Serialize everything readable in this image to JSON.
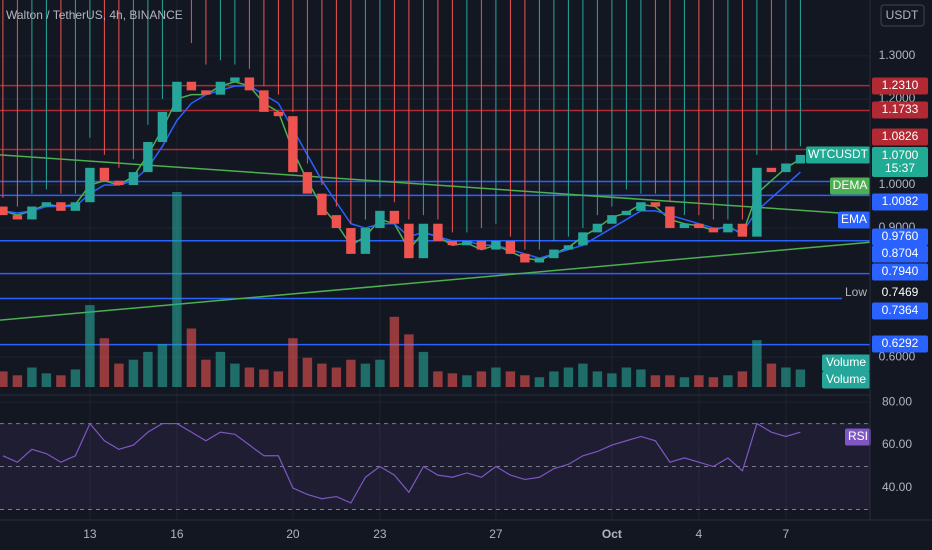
{
  "chart_data": {
    "type": "candlestick",
    "title": "Walton / TetherUS, 4h, BINANCE",
    "currency": "USDT",
    "x": [
      10,
      10.5,
      11,
      11.5,
      12,
      12.5,
      13,
      13.5,
      14,
      14.5,
      15,
      15.5,
      16,
      16.5,
      17,
      17.5,
      18,
      18.5,
      19,
      19.5,
      20,
      20.5,
      21,
      21.5,
      22,
      22.5,
      23,
      23.5,
      24,
      24.5,
      25,
      25.5,
      26,
      26.5,
      27,
      27.5,
      28,
      28.5,
      29,
      29.5,
      30,
      30.5,
      31,
      31.5,
      32,
      32.5,
      33,
      33.5,
      34,
      34.5,
      35,
      35.5,
      36,
      36.5,
      37,
      37.5
    ],
    "open": [
      0.95,
      0.93,
      0.92,
      0.95,
      0.96,
      0.94,
      0.96,
      1.04,
      1.01,
      1.0,
      1.03,
      1.1,
      1.17,
      1.24,
      1.22,
      1.21,
      1.24,
      1.25,
      1.22,
      1.17,
      1.16,
      1.03,
      0.98,
      0.93,
      0.9,
      0.84,
      0.9,
      0.94,
      0.91,
      0.83,
      0.91,
      0.87,
      0.86,
      0.87,
      0.85,
      0.87,
      0.84,
      0.82,
      0.83,
      0.85,
      0.86,
      0.89,
      0.91,
      0.93,
      0.94,
      0.96,
      0.95,
      0.9,
      0.91,
      0.9,
      0.89,
      0.91,
      0.88,
      1.04,
      1.03,
      1.05
    ],
    "high": [
      0.97,
      0.95,
      0.98,
      0.99,
      0.98,
      0.98,
      1.11,
      1.07,
      1.04,
      1.06,
      1.14,
      1.2,
      1.43,
      1.33,
      1.28,
      1.29,
      1.28,
      1.27,
      1.23,
      1.21,
      1.17,
      1.05,
      1.0,
      0.95,
      0.91,
      0.92,
      0.97,
      0.96,
      0.92,
      0.93,
      0.92,
      0.89,
      0.89,
      0.9,
      0.91,
      0.88,
      0.85,
      0.85,
      0.87,
      0.88,
      0.9,
      0.93,
      0.95,
      0.99,
      0.98,
      0.98,
      0.96,
      0.93,
      0.93,
      0.92,
      0.92,
      0.92,
      1.07,
      1.08,
      1.08,
      1.09
    ],
    "low": {
      "name": "Low",
      "value": 0.7469,
      "value_label": "0.7469"
    },
    "close": [
      0.93,
      0.92,
      0.95,
      0.96,
      0.94,
      0.96,
      1.04,
      1.01,
      1.0,
      1.03,
      1.1,
      1.17,
      1.24,
      1.22,
      1.21,
      1.24,
      1.25,
      1.22,
      1.17,
      1.16,
      1.03,
      0.98,
      0.93,
      0.9,
      0.84,
      0.9,
      0.94,
      0.91,
      0.83,
      0.91,
      0.87,
      0.86,
      0.87,
      0.85,
      0.87,
      0.84,
      0.82,
      0.83,
      0.85,
      0.86,
      0.89,
      0.91,
      0.93,
      0.94,
      0.96,
      0.95,
      0.9,
      0.91,
      0.9,
      0.89,
      0.91,
      0.88,
      1.04,
      1.03,
      1.05,
      1.07
    ],
    "volume_name": "Volume",
    "volume": [
      8,
      6,
      10,
      7,
      6,
      9,
      42,
      25,
      12,
      14,
      18,
      22,
      100,
      30,
      14,
      18,
      12,
      10,
      9,
      8,
      25,
      15,
      12,
      10,
      14,
      12,
      14,
      36,
      27,
      18,
      8,
      7,
      6,
      8,
      10,
      8,
      6,
      5,
      8,
      10,
      12,
      8,
      7,
      10,
      9,
      6,
      6,
      5,
      6,
      5,
      6,
      8,
      24,
      12,
      10,
      9
    ],
    "vlim": [
      0,
      100
    ],
    "up_color": "#26a69a",
    "down_color": "#ef5350",
    "xlim": [
      9.9,
      39.9
    ],
    "xticks": [
      13,
      16,
      20,
      23,
      27,
      {
        "value": 31,
        "label": "Oct"
      },
      {
        "value": 34,
        "label": "4"
      },
      {
        "value": 37,
        "label": "7"
      }
    ],
    "ylim": [
      0.512,
      1.43
    ],
    "yticks": [
      {
        "value": 1.3,
        "label": "1.3000"
      },
      {
        "value": 1.2,
        "label": "1.2000"
      },
      {
        "value": 1.0,
        "label": "1.0000"
      },
      {
        "value": 0.9,
        "label": "0.9000"
      },
      {
        "value": 0.6,
        "label": "0.6000"
      }
    ],
    "dema": {
      "name": "DEMA",
      "color": "#4caf50",
      "values": [
        0.94,
        0.93,
        0.94,
        0.955,
        0.95,
        0.955,
        1.0,
        1.01,
        1.0,
        1.02,
        1.07,
        1.13,
        1.2,
        1.21,
        1.21,
        1.23,
        1.24,
        1.23,
        1.19,
        1.17,
        1.08,
        1.01,
        0.95,
        0.91,
        0.86,
        0.88,
        0.92,
        0.91,
        0.85,
        0.89,
        0.88,
        0.86,
        0.865,
        0.85,
        0.86,
        0.845,
        0.83,
        0.825,
        0.84,
        0.855,
        0.88,
        0.9,
        0.925,
        0.935,
        0.955,
        0.95,
        0.92,
        0.91,
        0.905,
        0.895,
        0.905,
        0.885,
        0.98,
        1.01,
        1.04,
        1.06
      ]
    },
    "ema": {
      "name": "EMA",
      "color": "#2962ff",
      "values": [
        0.94,
        0.935,
        0.94,
        0.95,
        0.95,
        0.95,
        0.98,
        1.0,
        1.0,
        1.01,
        1.04,
        1.09,
        1.15,
        1.19,
        1.21,
        1.22,
        1.23,
        1.23,
        1.21,
        1.19,
        1.13,
        1.07,
        1.01,
        0.96,
        0.91,
        0.9,
        0.91,
        0.91,
        0.88,
        0.89,
        0.88,
        0.87,
        0.87,
        0.86,
        0.86,
        0.85,
        0.84,
        0.83,
        0.84,
        0.85,
        0.86,
        0.88,
        0.9,
        0.92,
        0.94,
        0.94,
        0.93,
        0.92,
        0.91,
        0.9,
        0.9,
        0.89,
        0.94,
        0.97,
        1.0,
        1.03
      ]
    },
    "trendlines": [
      {
        "color": "#4caf50",
        "x": [
          9.9,
          39.9
        ],
        "y": [
          1.07,
          0.93
        ]
      },
      {
        "color": "#4caf50",
        "x": [
          9.9,
          39.9
        ],
        "y": [
          0.686,
          0.867
        ]
      }
    ],
    "levels": [
      {
        "value": 1.231,
        "label": "1.2310",
        "color": "#b22833"
      },
      {
        "value": 1.1733,
        "label": "1.1733",
        "color": "#b22833"
      },
      {
        "value": 1.0826,
        "label": "1.0826",
        "color": "#b22833"
      },
      {
        "value": 1.0082,
        "label": "1.0082",
        "color": "#2962ff"
      },
      {
        "value": 0.976,
        "label": "0.9760",
        "color": "#2962ff"
      },
      {
        "value": 0.8704,
        "label": "0.8704",
        "color": "#2962ff"
      },
      {
        "value": 0.794,
        "label": "0.7940",
        "color": "#2962ff"
      },
      {
        "value": 0.7364,
        "label": "0.7364",
        "color": "#2962ff"
      },
      {
        "value": 0.6292,
        "label": "0.6292",
        "color": "#2962ff"
      }
    ],
    "last": {
      "name": "WTCUSDT",
      "value": 1.07,
      "value_label": "1.0700",
      "countdown": "15:37"
    },
    "rsi": {
      "name": "RSI",
      "color": "#7e57c2",
      "values": [
        55,
        52,
        58,
        56,
        52,
        55,
        70,
        62,
        58,
        60,
        66,
        70,
        70,
        66,
        62,
        66,
        65,
        60,
        55,
        55,
        40,
        37,
        35,
        36,
        33,
        45,
        50,
        46,
        38,
        50,
        46,
        45,
        47,
        45,
        50,
        46,
        44,
        45,
        49,
        51,
        55,
        57,
        60,
        62,
        64,
        62,
        52,
        54,
        52,
        50,
        54,
        48,
        70,
        66,
        64,
        66
      ],
      "ylim": [
        25.1,
        83.3
      ],
      "yticks": [
        {
          "value": 80,
          "label": "80.00"
        },
        {
          "value": 60,
          "label": "60.00"
        },
        {
          "value": 40,
          "label": "40.00"
        }
      ],
      "levels": [
        70,
        50,
        30
      ]
    }
  }
}
